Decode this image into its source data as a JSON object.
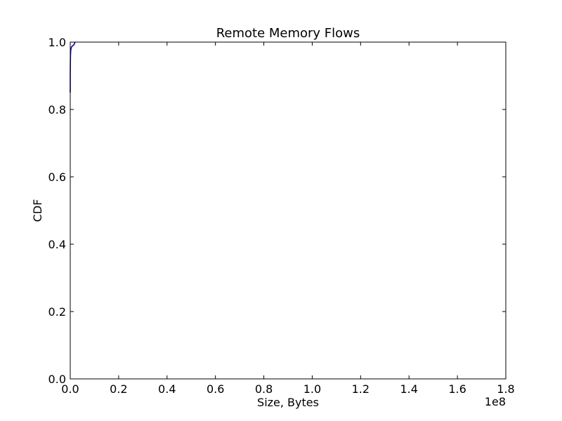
{
  "chart_data": {
    "type": "line",
    "title": "Remote Memory Flows",
    "xlabel": "Size, Bytes",
    "ylabel": "CDF",
    "x_offset_label": "1e8",
    "xlim": [
      0,
      1.8
    ],
    "ylim": [
      0.0,
      1.0
    ],
    "x_ticks": [
      0.0,
      0.2,
      0.4,
      0.6,
      0.8,
      1.0,
      1.2,
      1.4,
      1.6,
      1.8
    ],
    "x_tick_labels": [
      "0.0",
      "0.2",
      "0.4",
      "0.6",
      "0.8",
      "1.0",
      "1.2",
      "1.4",
      "1.6",
      "1.8"
    ],
    "y_ticks": [
      0.0,
      0.2,
      0.4,
      0.6,
      0.8,
      1.0
    ],
    "y_tick_labels": [
      "0.0",
      "0.2",
      "0.4",
      "0.6",
      "0.8",
      "1.0"
    ],
    "grid": false,
    "series": [
      {
        "color": "#0000aa",
        "x": [
          0.0,
          0.0,
          0.0005,
          0.001,
          0.002,
          0.003,
          0.005,
          0.008,
          0.012,
          0.016,
          0.018,
          0.02
        ],
        "y": [
          0.85,
          0.9,
          0.94,
          0.96,
          0.975,
          0.98,
          0.985,
          0.988,
          0.99,
          0.993,
          0.997,
          1.0
        ]
      }
    ]
  }
}
